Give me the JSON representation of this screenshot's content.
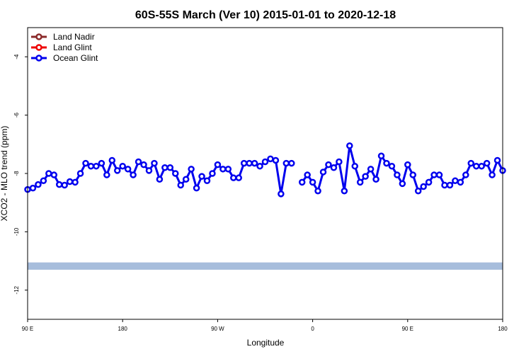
{
  "chart_data": {
    "type": "line",
    "title": "60S-55S March (Ver 10)   2015-01-01 to 2020-12-18",
    "xlabel": "Longitude",
    "ylabel": "XCO2 - MLO trend (ppm)",
    "xlim": [
      90,
      450
    ],
    "ylim": [
      -13,
      -3
    ],
    "x_ticks": [
      90,
      180,
      270,
      360,
      450,
      540
    ],
    "x_tick_labels": [
      "90 E",
      "180",
      "90 W",
      "0",
      "90 E",
      "180"
    ],
    "y_ticks": [
      -12,
      -10,
      -8,
      -6,
      -4
    ],
    "y_tick_labels": [
      "-12",
      "-10",
      "-8",
      "-6",
      "-4"
    ],
    "legend": {
      "placement": "top-left",
      "entries": [
        {
          "label": "Land Nadir",
          "color": "#8b2a2a"
        },
        {
          "label": "Land Glint",
          "color": "#ee0000"
        },
        {
          "label": "Ocean Glint",
          "color": "#0000ee"
        }
      ]
    },
    "band": {
      "y_low": -11.3,
      "y_high": -11.05,
      "color": "#a7bddc"
    },
    "series": [
      {
        "name": "Ocean Glint",
        "color": "#0000ee",
        "segments": [
          {
            "x": [
              90,
              95,
              100,
              105,
              110,
              115,
              120,
              125,
              130,
              135,
              140,
              145,
              150,
              155,
              160,
              165,
              170,
              175,
              180,
              185,
              190,
              195,
              200,
              205,
              210,
              215,
              220,
              225,
              230,
              235,
              240,
              245,
              250,
              255,
              260,
              265,
              270,
              275,
              280,
              285,
              290,
              295,
              300,
              305,
              310,
              315,
              320,
              325,
              330,
              335,
              340
            ],
            "y": [
              -8.55,
              -8.5,
              -8.38,
              -8.25,
              -8.0,
              -8.05,
              -8.38,
              -8.4,
              -8.28,
              -8.3,
              -8.0,
              -7.65,
              -7.75,
              -7.75,
              -7.65,
              -8.05,
              -7.55,
              -7.9,
              -7.75,
              -7.85,
              -8.05,
              -7.6,
              -7.7,
              -7.9,
              -7.65,
              -8.2,
              -7.8,
              -7.8,
              -8.0,
              -8.4,
              -8.2,
              -7.85,
              -8.5,
              -8.1,
              -8.25,
              -8.0,
              -7.7,
              -7.85,
              -7.85,
              -8.15,
              -8.15,
              -7.65,
              -7.65,
              -7.65,
              -7.75,
              -7.6,
              -7.5,
              -7.55,
              -8.7,
              -7.65,
              -7.65
            ]
          },
          {
            "x": [
              350,
              355,
              360,
              365,
              370,
              375,
              380,
              385,
              390,
              395,
              400,
              405,
              410,
              415,
              420,
              425,
              430,
              435,
              440,
              445,
              450,
              455,
              460,
              465,
              470,
              475,
              480,
              485,
              490,
              495,
              500,
              505,
              510,
              515,
              520,
              525,
              530,
              535,
              540
            ],
            "y": [
              -8.3,
              -8.05,
              -8.3,
              -8.6,
              -7.95,
              -7.7,
              -7.8,
              -7.6,
              -8.6,
              -7.05,
              -7.75,
              -8.3,
              -8.1,
              -7.85,
              -8.2,
              -7.4,
              -7.65,
              -7.75,
              -8.05,
              -8.35,
              -7.7,
              -8.05,
              -8.6,
              -8.45,
              -8.3,
              -8.05,
              -8.05,
              -8.4,
              -8.4,
              -8.25,
              -8.3,
              -8.05,
              -7.65,
              -7.75,
              -7.75,
              -7.65,
              -8.05,
              -7.55,
              -7.9
            ]
          }
        ]
      }
    ]
  }
}
